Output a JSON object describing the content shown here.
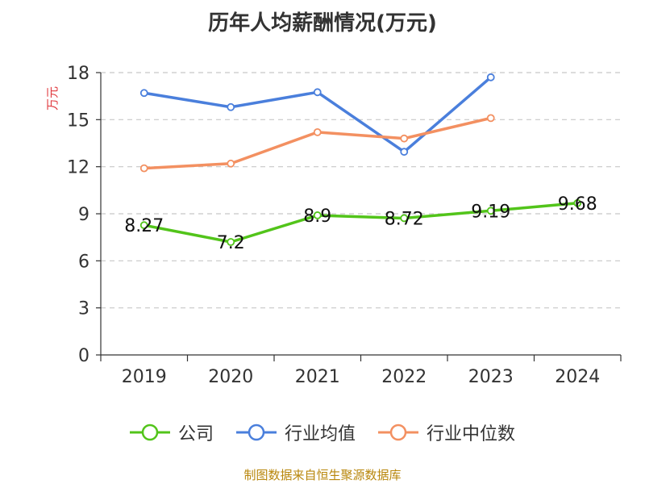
{
  "chart_data": {
    "type": "line",
    "title": "历年人均薪酬情况(万元)",
    "ylabel": "万元",
    "xlabel": "",
    "categories": [
      "2019",
      "2020",
      "2021",
      "2022",
      "2023",
      "2024"
    ],
    "ylim": [
      0,
      18
    ],
    "yticks": [
      0,
      3,
      6,
      9,
      12,
      15,
      18
    ],
    "grid": true,
    "legend_position": "bottom",
    "series": [
      {
        "name": "公司",
        "color": "#52c41a",
        "values": [
          8.27,
          7.2,
          8.9,
          8.72,
          9.19,
          9.68
        ],
        "labels": [
          "8.27",
          "7.2",
          "8.9",
          "8.72",
          "9.19",
          "9.68"
        ]
      },
      {
        "name": "行业均值",
        "color": "#4a7fdc",
        "values": [
          16.7,
          15.8,
          16.75,
          12.95,
          17.7,
          null
        ]
      },
      {
        "name": "行业中位数",
        "color": "#f39061",
        "values": [
          11.9,
          12.2,
          14.2,
          13.8,
          15.1,
          null
        ]
      }
    ],
    "source": "制图数据来自恒生聚源数据库"
  }
}
